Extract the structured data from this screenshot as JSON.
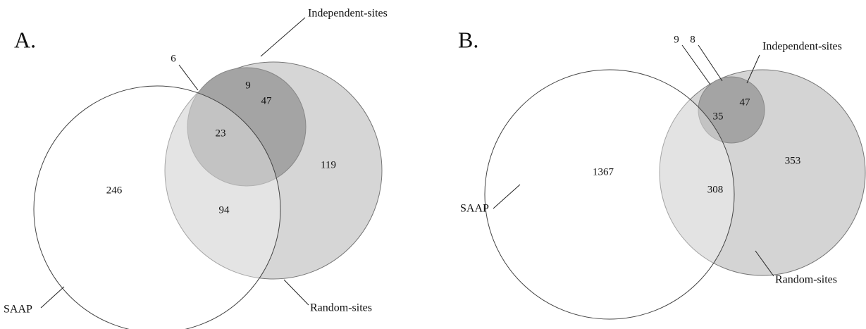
{
  "panels": [
    {
      "label": "A.",
      "sets": {
        "independent": "Independent-sites",
        "saap": "SAAP",
        "random": "Random-sites"
      },
      "regions": {
        "independent_only": "9",
        "saap_independent_only": "6",
        "independent_random": "47",
        "all_three": "23",
        "random_only": "119",
        "saap_only": "246",
        "saap_random": "94"
      }
    },
    {
      "label": "B.",
      "sets": {
        "independent": "Independent-sites",
        "saap": "SAAP",
        "random": "Random-sites"
      },
      "regions": {
        "saap_independent_only": "9",
        "independent_only": "8",
        "independent_random": "47",
        "all_three": "35",
        "saap_only": "1367",
        "saap_random": "308",
        "random_only": "353"
      }
    }
  ]
}
